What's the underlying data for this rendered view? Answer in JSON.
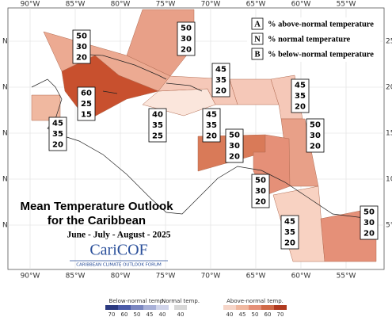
{
  "title": [
    "Mean Temperature Outlook",
    "for the Caribbean"
  ],
  "season": "June - July - August - 2025",
  "logo": {
    "name": "CariCOF",
    "tagline": "CARIBBEAN CLIMATE OUTLOOK FORUM"
  },
  "legend": [
    {
      "key": "A",
      "text": "% above-normal temperature"
    },
    {
      "key": "N",
      "text": "% normal temperature"
    },
    {
      "key": "B",
      "text": "% below-normal temperature"
    }
  ],
  "longitudes": [
    "90°W",
    "85°W",
    "80°W",
    "75°W",
    "70°W",
    "65°W",
    "60°W",
    "55°W"
  ],
  "latitudes": [
    "25°",
    "20°",
    "15°",
    "10°",
    "5°"
  ],
  "left_labels": [
    "N",
    "N",
    "N",
    "N",
    "N"
  ],
  "regions": [
    [
      50,
      30,
      20
    ],
    [
      50,
      30,
      20
    ],
    [
      60,
      25,
      15
    ],
    [
      45,
      35,
      20
    ],
    [
      45,
      35,
      20
    ],
    [
      40,
      35,
      25
    ],
    [
      45,
      35,
      20
    ],
    [
      45,
      35,
      20
    ],
    [
      50,
      30,
      20
    ],
    [
      50,
      30,
      20
    ],
    [
      50,
      30,
      20
    ],
    [
      45,
      35,
      20
    ],
    [
      50,
      30,
      20
    ]
  ],
  "colorbar": {
    "below": {
      "title": "Below-normal temp.",
      "labels": [
        70,
        60,
        50,
        45,
        40
      ]
    },
    "normal": {
      "title": "Normal temp.",
      "labels": [
        40
      ]
    },
    "above": {
      "title": "Above-normal temp.",
      "labels": [
        40,
        45,
        50,
        60,
        70
      ]
    }
  }
}
